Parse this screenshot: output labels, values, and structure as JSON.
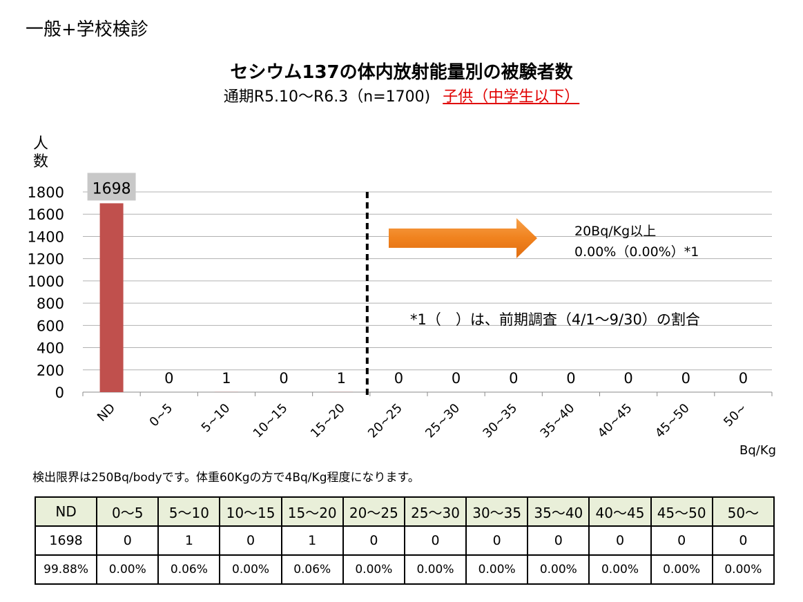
{
  "header": "一般+学校検診",
  "title": "セシウム137の体内放射能量別の被験者数",
  "subtitle": "通期R5.10～R6.3（n=1700)",
  "subtitle_emphasis": "子供（中学生以下）",
  "ylabel": "人数",
  "unit_label": "Bq/Kg",
  "annotation_line1": "20Bq/Kg以上",
  "annotation_line2": "0.00%（0.00%）*1",
  "annotation_note": "*1（　）は、前期調査（4/1～9/30）の割合",
  "note": "検出限界は250Bq/bodyです。体重60Kgの方で4Bq/Kg程度になります。",
  "chart_data": {
    "type": "bar",
    "title": "セシウム137の体内放射能量別の被験者数",
    "categories": [
      "ND",
      "0~5",
      "5~10",
      "10~15",
      "15~20",
      "20~25",
      "25~30",
      "30~35",
      "35~40",
      "40~45",
      "45~50",
      "50~"
    ],
    "values": [
      1698,
      0,
      1,
      0,
      1,
      0,
      0,
      0,
      0,
      0,
      0,
      0
    ],
    "ylabel": "人数",
    "xlabel": "Bq/Kg",
    "ylim": [
      0,
      1800
    ],
    "yticks": [
      0,
      200,
      400,
      600,
      800,
      1000,
      1200,
      1400,
      1600,
      1800
    ],
    "grid": true,
    "colors": {
      "bar": "#c0504d",
      "label_bg": "#c8c8c8",
      "arrow": "#f0821e"
    },
    "threshold_between": [
      "15~20",
      "20~25"
    ]
  },
  "table": {
    "header": [
      "ND",
      "0～5",
      "5～10",
      "10～15",
      "15～20",
      "20～25",
      "25～30",
      "30～35",
      "35～40",
      "40～45",
      "45～50",
      "50～"
    ],
    "counts": [
      "1698",
      "0",
      "1",
      "0",
      "1",
      "0",
      "0",
      "0",
      "0",
      "0",
      "0",
      "0"
    ],
    "percents": [
      "99.88%",
      "0.00%",
      "0.06%",
      "0.00%",
      "0.06%",
      "0.00%",
      "0.00%",
      "0.00%",
      "0.00%",
      "0.00%",
      "0.00%",
      "0.00%"
    ]
  }
}
